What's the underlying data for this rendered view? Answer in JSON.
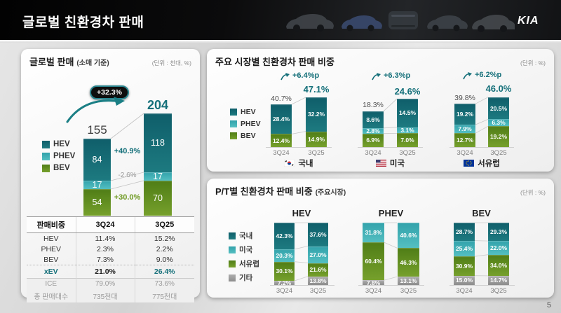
{
  "header": {
    "title": "글로벌 친환경차 판매",
    "logo": "KIA"
  },
  "page_number": "5",
  "global_panel": {
    "title": "글로벌 판매",
    "title_suffix": "(소매 기준)",
    "unit": "(단위 : 천대, %)",
    "legend": [
      {
        "key": "hev",
        "label": "HEV"
      },
      {
        "key": "phev",
        "label": "PHEV"
      },
      {
        "key": "bev",
        "label": "BEV"
      }
    ],
    "growth_badge": "+32.3%",
    "columns": [
      {
        "name": "3Q24",
        "total": "155",
        "segments": [
          {
            "type": "hev",
            "value": 84,
            "label": "84"
          },
          {
            "type": "phev",
            "value": 17,
            "label": "17"
          },
          {
            "type": "bev",
            "value": 54,
            "label": "54"
          }
        ]
      },
      {
        "name": "3Q25",
        "total": "204",
        "segments": [
          {
            "type": "hev",
            "value": 118,
            "label": "118"
          },
          {
            "type": "phev",
            "value": 17,
            "label": "17"
          },
          {
            "type": "bev",
            "value": 70,
            "label": "70"
          }
        ]
      }
    ],
    "deltas": [
      {
        "type": "hev",
        "label": "+40.9%"
      },
      {
        "type": "phev",
        "label": "-2.6%"
      },
      {
        "type": "bev",
        "label": "+30.0%"
      }
    ],
    "table": {
      "headers": [
        "판매비중",
        "3Q24",
        "3Q25"
      ],
      "rows": [
        {
          "label": "HEV",
          "v1": "11.4%",
          "v2": "15.2%"
        },
        {
          "label": "PHEV",
          "v1": "2.3%",
          "v2": "2.2%"
        },
        {
          "label": "BEV",
          "v1": "7.3%",
          "v2": "9.0%"
        },
        {
          "label": "xEV",
          "v1": "21.0%",
          "v2": "26.4%"
        },
        {
          "label": "ICE",
          "v1": "79.0%",
          "v2": "73.6%"
        },
        {
          "label": "총 판매대수",
          "v1": "735천대",
          "v2": "775천대"
        }
      ]
    }
  },
  "market_panel": {
    "title": "주요 시장별 친환경차 판매 비중",
    "unit": "(단위 : %)",
    "legend": [
      {
        "key": "hev",
        "label": "HEV"
      },
      {
        "key": "phev",
        "label": "PHEV"
      },
      {
        "key": "bev",
        "label": "BEV"
      }
    ],
    "groups": [
      {
        "market": "국내",
        "flag": "kr",
        "delta": "+6.4%p",
        "bars": [
          {
            "name": "3Q24",
            "total": "40.7%",
            "segments": [
              {
                "type": "hev",
                "value": 28.4,
                "label": "28.4%"
              },
              {
                "type": "bev",
                "value": 12.4,
                "label": "12.4%"
              }
            ]
          },
          {
            "name": "3Q25",
            "total": "47.1%",
            "segments": [
              {
                "type": "hev",
                "value": 32.2,
                "label": "32.2%"
              },
              {
                "type": "bev",
                "value": 14.9,
                "label": "14.9%"
              }
            ]
          }
        ]
      },
      {
        "market": "미국",
        "flag": "us",
        "delta": "+6.3%p",
        "bars": [
          {
            "name": "3Q24",
            "total": "18.3%",
            "segments": [
              {
                "type": "hev",
                "value": 8.6,
                "label": "8.6%"
              },
              {
                "type": "phev",
                "value": 2.8,
                "label": "2.8%"
              },
              {
                "type": "bev",
                "value": 6.9,
                "label": "6.9%"
              }
            ]
          },
          {
            "name": "3Q25",
            "total": "24.6%",
            "segments": [
              {
                "type": "hev",
                "value": 14.5,
                "label": "14.5%"
              },
              {
                "type": "phev",
                "value": 3.1,
                "label": "3.1%"
              },
              {
                "type": "bev",
                "value": 7.0,
                "label": "7.0%"
              }
            ]
          }
        ]
      },
      {
        "market": "서유럽",
        "flag": "eu",
        "delta": "+6.2%p",
        "bars": [
          {
            "name": "3Q24",
            "total": "39.8%",
            "segments": [
              {
                "type": "hev",
                "value": 19.2,
                "label": "19.2%"
              },
              {
                "type": "phev",
                "value": 7.9,
                "label": "7.9%"
              },
              {
                "type": "bev",
                "value": 12.7,
                "label": "12.7%"
              }
            ]
          },
          {
            "name": "3Q25",
            "total": "46.0%",
            "segments": [
              {
                "type": "hev",
                "value": 20.5,
                "label": "20.5%"
              },
              {
                "type": "phev",
                "value": 6.3,
                "label": "6.3%"
              },
              {
                "type": "bev",
                "value": 19.2,
                "label": "19.2%"
              }
            ]
          }
        ]
      }
    ]
  },
  "pt_panel": {
    "title": "P/T별 친환경차 판매 비중",
    "title_suffix": "(주요시장)",
    "unit": "(단위 : %)",
    "legend": [
      {
        "key": "kr",
        "label": "국내"
      },
      {
        "key": "us",
        "label": "미국"
      },
      {
        "key": "eu",
        "label": "서유럽"
      },
      {
        "key": "etc",
        "label": "기타"
      }
    ],
    "groups": [
      {
        "title": "HEV",
        "bars": [
          {
            "name": "3Q24",
            "segments": [
              {
                "type": "kr",
                "value": 42.3,
                "label": "42.3%"
              },
              {
                "type": "us",
                "value": 20.3,
                "label": "20.3%"
              },
              {
                "type": "eu",
                "value": 30.1,
                "label": "30.1%"
              },
              {
                "type": "etc",
                "value": 7.2,
                "label": "7.2%"
              }
            ]
          },
          {
            "name": "3Q25",
            "segments": [
              {
                "type": "kr",
                "value": 37.6,
                "label": "37.6%"
              },
              {
                "type": "us",
                "value": 27.0,
                "label": "27.0%"
              },
              {
                "type": "eu",
                "value": 21.6,
                "label": "21.6%"
              },
              {
                "type": "etc",
                "value": 13.8,
                "label": "13.8%"
              }
            ]
          }
        ]
      },
      {
        "title": "PHEV",
        "bars": [
          {
            "name": "3Q24",
            "segments": [
              {
                "type": "us",
                "value": 31.8,
                "label": "31.8%"
              },
              {
                "type": "eu",
                "value": 60.4,
                "label": "60.4%"
              },
              {
                "type": "etc",
                "value": 7.8,
                "label": "7.8%"
              }
            ]
          },
          {
            "name": "3Q25",
            "segments": [
              {
                "type": "us",
                "value": 40.6,
                "label": "40.6%"
              },
              {
                "type": "eu",
                "value": 46.3,
                "label": "46.3%"
              },
              {
                "type": "etc",
                "value": 13.1,
                "label": "13.1%"
              }
            ]
          }
        ]
      },
      {
        "title": "BEV",
        "bars": [
          {
            "name": "3Q24",
            "segments": [
              {
                "type": "kr",
                "value": 28.7,
                "label": "28.7%"
              },
              {
                "type": "us",
                "value": 25.4,
                "label": "25.4%"
              },
              {
                "type": "eu",
                "value": 30.9,
                "label": "30.9%"
              },
              {
                "type": "etc",
                "value": 15.0,
                "label": "15.0%"
              }
            ]
          },
          {
            "name": "3Q25",
            "segments": [
              {
                "type": "kr",
                "value": 29.3,
                "label": "29.3%"
              },
              {
                "type": "us",
                "value": 22.0,
                "label": "22.0%"
              },
              {
                "type": "eu",
                "value": 34.0,
                "label": "34.0%"
              },
              {
                "type": "etc",
                "value": 14.7,
                "label": "14.7%"
              }
            ]
          }
        ]
      }
    ]
  },
  "chart_data": [
    {
      "type": "bar",
      "subtype": "stacked",
      "title": "글로벌 판매 (소매 기준)",
      "unit": "천대",
      "categories": [
        "3Q24",
        "3Q25"
      ],
      "series": [
        {
          "name": "HEV",
          "values": [
            84,
            118
          ]
        },
        {
          "name": "PHEV",
          "values": [
            17,
            17
          ]
        },
        {
          "name": "BEV",
          "values": [
            54,
            70
          ]
        }
      ],
      "totals": [
        155,
        204
      ],
      "total_growth": "+32.3%",
      "series_growth": {
        "HEV": "+40.9%",
        "PHEV": "-2.6%",
        "BEV": "+30.0%"
      },
      "legend_position": "left",
      "grid": false
    },
    {
      "type": "bar",
      "subtype": "stacked",
      "title": "주요 시장별 친환경차 판매 비중",
      "unit": "%",
      "categories": [
        "3Q24",
        "3Q25"
      ],
      "groups": [
        {
          "market": "국내",
          "totals": [
            40.7,
            47.1
          ],
          "delta": "+6.4%p",
          "series": [
            {
              "name": "HEV",
              "values": [
                28.4,
                32.2
              ]
            },
            {
              "name": "PHEV",
              "values": [
                0,
                0
              ]
            },
            {
              "name": "BEV",
              "values": [
                12.4,
                14.9
              ]
            }
          ]
        },
        {
          "market": "미국",
          "totals": [
            18.3,
            24.6
          ],
          "delta": "+6.3%p",
          "series": [
            {
              "name": "HEV",
              "values": [
                8.6,
                14.5
              ]
            },
            {
              "name": "PHEV",
              "values": [
                2.8,
                3.1
              ]
            },
            {
              "name": "BEV",
              "values": [
                6.9,
                7.0
              ]
            }
          ]
        },
        {
          "market": "서유럽",
          "totals": [
            39.8,
            46.0
          ],
          "delta": "+6.2%p",
          "series": [
            {
              "name": "HEV",
              "values": [
                19.2,
                20.5
              ]
            },
            {
              "name": "PHEV",
              "values": [
                7.9,
                6.3
              ]
            },
            {
              "name": "BEV",
              "values": [
                12.7,
                19.2
              ]
            }
          ]
        }
      ],
      "legend_position": "left",
      "grid": false
    },
    {
      "type": "bar",
      "subtype": "stacked-100",
      "title": "P/T별 친환경차 판매 비중 (주요시장)",
      "unit": "%",
      "categories": [
        "3Q24",
        "3Q25"
      ],
      "groups": [
        {
          "powertrain": "HEV",
          "series": [
            {
              "name": "국내",
              "values": [
                42.3,
                37.6
              ]
            },
            {
              "name": "미국",
              "values": [
                20.3,
                27.0
              ]
            },
            {
              "name": "서유럽",
              "values": [
                30.1,
                21.6
              ]
            },
            {
              "name": "기타",
              "values": [
                7.2,
                13.8
              ]
            }
          ]
        },
        {
          "powertrain": "PHEV",
          "series": [
            {
              "name": "국내",
              "values": [
                0,
                0
              ]
            },
            {
              "name": "미국",
              "values": [
                31.8,
                40.6
              ]
            },
            {
              "name": "서유럽",
              "values": [
                60.4,
                46.3
              ]
            },
            {
              "name": "기타",
              "values": [
                7.8,
                13.1
              ]
            }
          ]
        },
        {
          "powertrain": "BEV",
          "series": [
            {
              "name": "국내",
              "values": [
                28.7,
                29.3
              ]
            },
            {
              "name": "미국",
              "values": [
                25.4,
                22.0
              ]
            },
            {
              "name": "서유럽",
              "values": [
                30.9,
                34.0
              ]
            },
            {
              "name": "기타",
              "values": [
                15.0,
                14.7
              ]
            }
          ]
        }
      ],
      "legend_position": "left",
      "grid": false
    },
    {
      "type": "table",
      "title": "판매비중",
      "columns": [
        "판매비중",
        "3Q24",
        "3Q25"
      ],
      "rows": [
        [
          "HEV",
          "11.4%",
          "15.2%"
        ],
        [
          "PHEV",
          "2.3%",
          "2.2%"
        ],
        [
          "BEV",
          "7.3%",
          "9.0%"
        ],
        [
          "xEV",
          "21.0%",
          "26.4%"
        ],
        [
          "ICE",
          "79.0%",
          "73.6%"
        ],
        [
          "총 판매대수",
          "735천대",
          "775천대"
        ]
      ]
    }
  ]
}
